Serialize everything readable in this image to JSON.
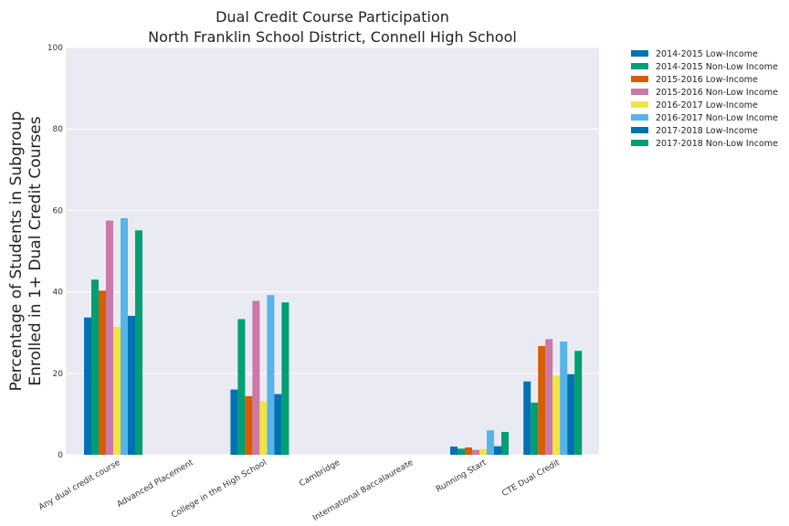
{
  "chart_data": {
    "type": "bar",
    "title": [
      "Dual Credit Course Participation",
      "North Franklin School District, Connell High School"
    ],
    "xlabel": "",
    "ylabel": [
      "Percentage of Students in Subgroup",
      "Enrolled in 1+ Dual Credit Courses"
    ],
    "ylim": [
      0,
      100
    ],
    "yticks": [
      0,
      20,
      40,
      60,
      80,
      100
    ],
    "grid": true,
    "legend_position": "outside-top-right",
    "categories": [
      "Any dual credit course",
      "Advanced Placement",
      "College in the High School",
      "Cambridge",
      "International Baccalaureate",
      "Running Start",
      "CTE Dual Credit"
    ],
    "series": [
      {
        "name": "2014-2015 Low-Income",
        "color": "#0072B2",
        "values": [
          33.7,
          null,
          16.0,
          null,
          null,
          2.0,
          18.0
        ]
      },
      {
        "name": "2014-2015 Non-Low Income",
        "color": "#009E73",
        "values": [
          43.0,
          null,
          33.3,
          null,
          null,
          1.5,
          12.8
        ]
      },
      {
        "name": "2015-2016 Low-Income",
        "color": "#D55E00",
        "values": [
          40.3,
          null,
          14.4,
          null,
          null,
          1.8,
          26.7
        ]
      },
      {
        "name": "2015-2016 Non-Low Income",
        "color": "#CC79A7",
        "values": [
          57.5,
          null,
          37.8,
          null,
          null,
          1.2,
          28.4
        ]
      },
      {
        "name": "2016-2017 Low-Income",
        "color": "#F0E442",
        "values": [
          31.4,
          null,
          13.1,
          null,
          null,
          1.4,
          19.4
        ]
      },
      {
        "name": "2016-2017 Non-Low Income",
        "color": "#56B4E9",
        "values": [
          58.1,
          null,
          39.2,
          null,
          null,
          6.0,
          27.8
        ]
      },
      {
        "name": "2017-2018 Low-Income",
        "color": "#0072B2",
        "values": [
          34.1,
          null,
          14.9,
          null,
          null,
          2.1,
          19.8
        ]
      },
      {
        "name": "2017-2018 Non-Low Income",
        "color": "#009E73",
        "values": [
          55.1,
          null,
          37.4,
          null,
          null,
          5.6,
          25.5
        ]
      }
    ]
  }
}
